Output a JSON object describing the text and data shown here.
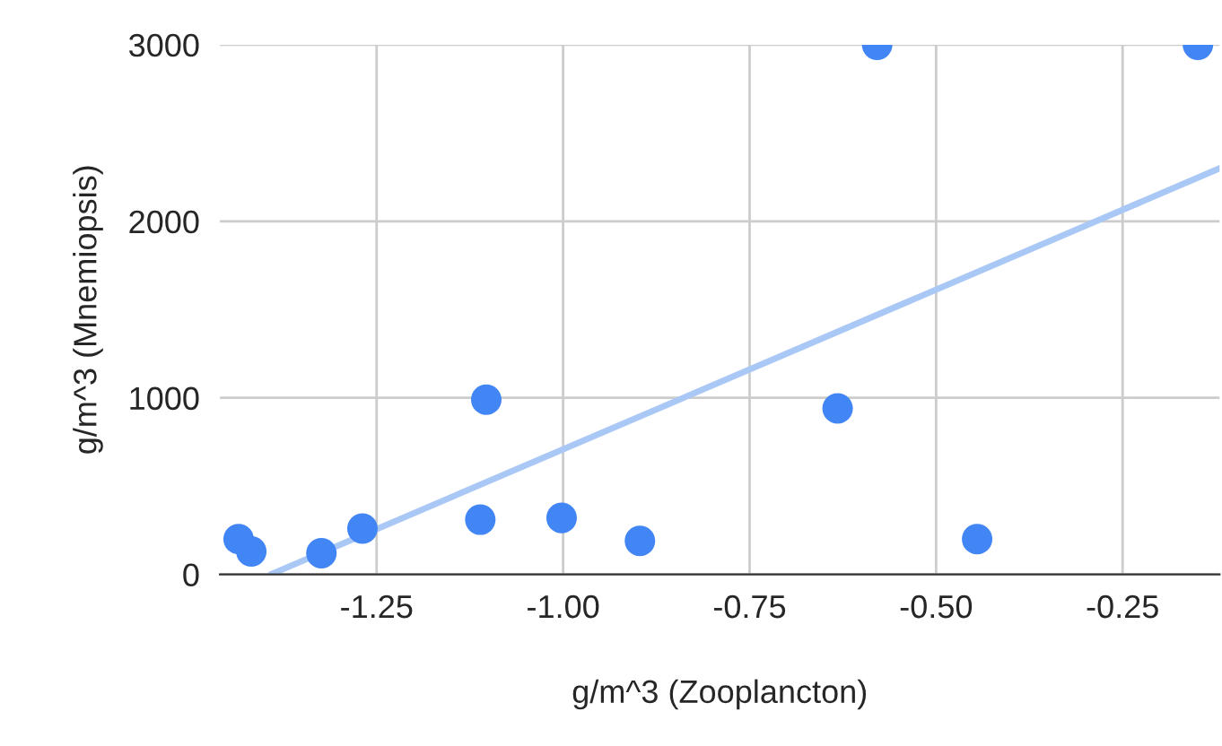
{
  "chart_data": {
    "type": "scatter",
    "xlabel": "g/m^3 (Zooplancton)",
    "ylabel": "g/m^3 (Mnemiopsis)",
    "xlim": [
      -1.46,
      -0.12
    ],
    "xticks": [
      {
        "value": -1.25,
        "label": "-1.25"
      },
      {
        "value": -1.0,
        "label": "-1.00"
      },
      {
        "value": -0.75,
        "label": "-0.75"
      },
      {
        "value": -0.5,
        "label": "-0.50"
      },
      {
        "value": -0.25,
        "label": "-0.25"
      }
    ],
    "ylim": [
      0,
      3000
    ],
    "yticks": [
      0,
      1000,
      2000,
      3000
    ],
    "grid": true,
    "marker": "circle",
    "series": [
      {
        "color": "#4285f4",
        "x": [
          -1.435,
          -1.418,
          -1.324,
          -1.269,
          -1.111,
          -1.103,
          -1.002,
          -0.897,
          -0.632,
          -0.579,
          -0.445,
          -0.149
        ],
        "values": [
          200,
          130,
          120,
          260,
          310,
          990,
          320,
          190,
          940,
          3000,
          200,
          3000
        ]
      },
      {
        "type": "line",
        "marker": "none",
        "color": "#aac8f6",
        "x": [
          -1.392,
          -0.12
        ],
        "values": [
          0,
          2300
        ]
      }
    ]
  }
}
